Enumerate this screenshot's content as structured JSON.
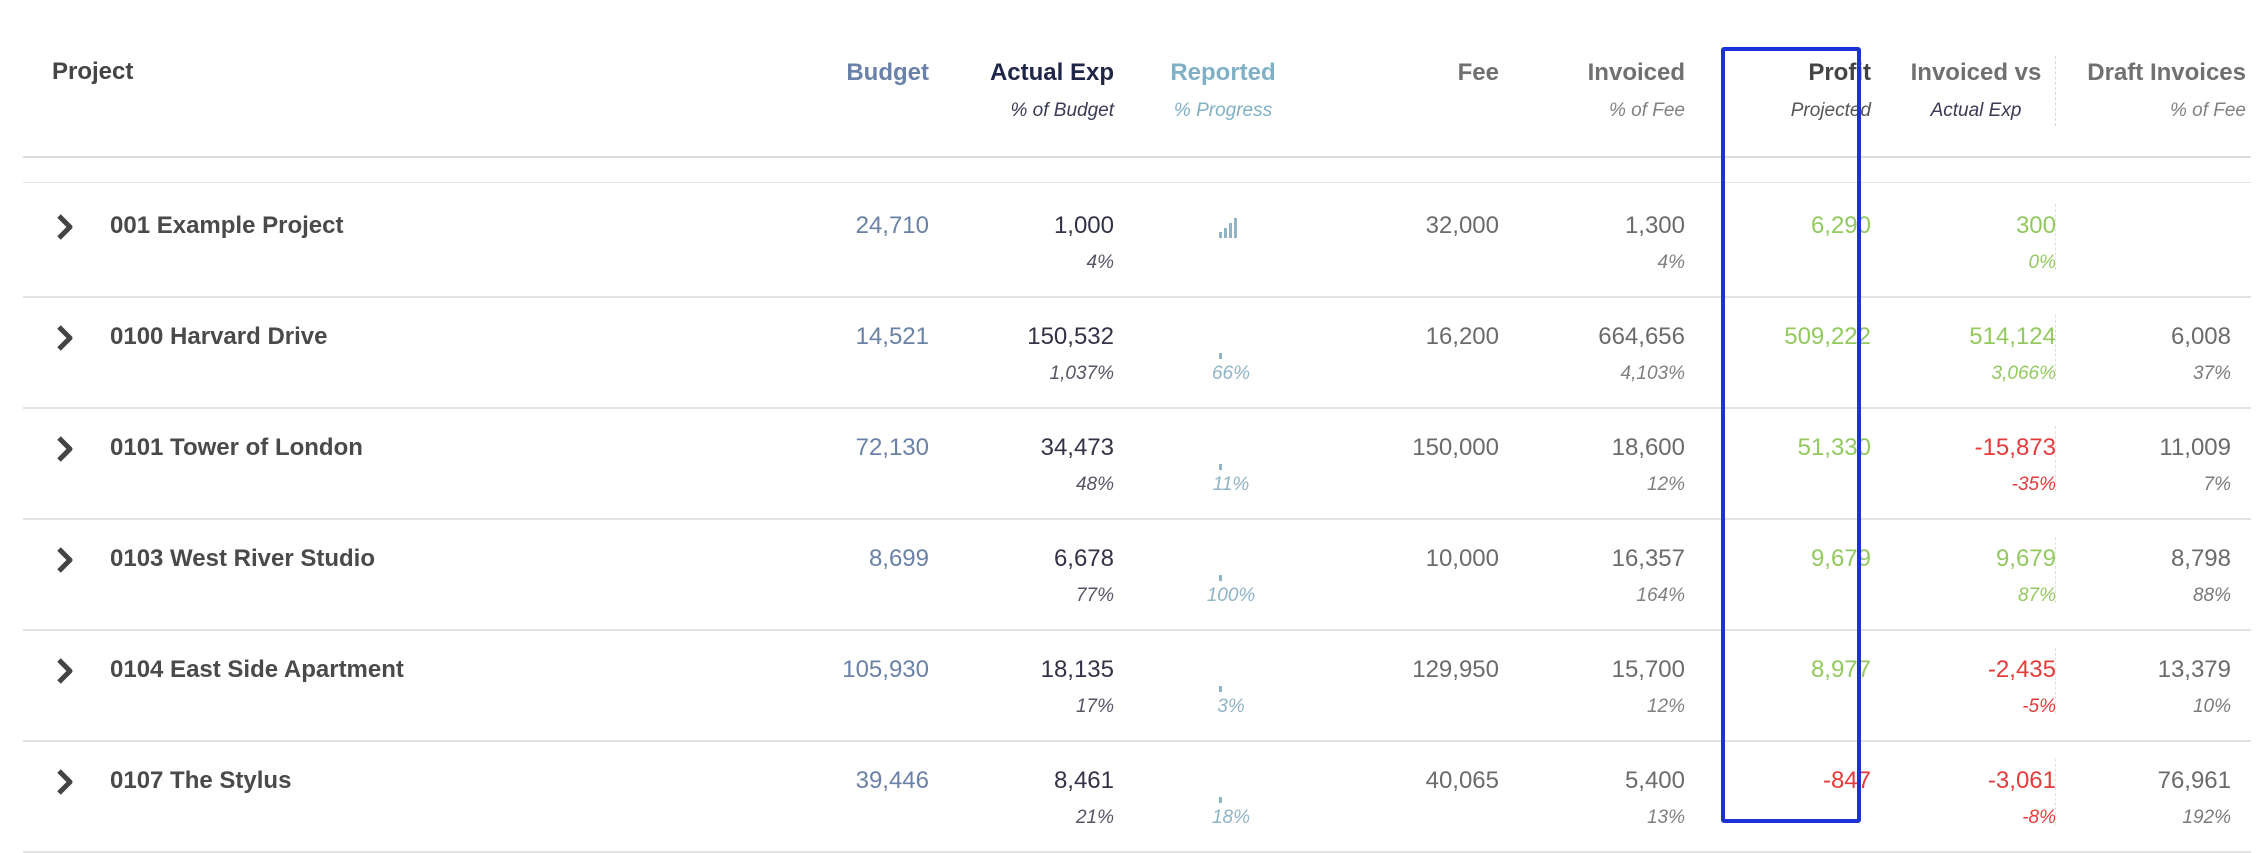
{
  "header": {
    "project": "Project",
    "columns": [
      {
        "key": "budget",
        "title": "Budget",
        "subtitle": "",
        "title_color": "#6a81a8"
      },
      {
        "key": "actual",
        "title": "Actual Exp",
        "subtitle": "% of Budget",
        "title_color": "#1f2547"
      },
      {
        "key": "reported",
        "title": "Reported",
        "subtitle": "% Progress",
        "title_color": "#7fb0c6"
      },
      {
        "key": "fee",
        "title": "Fee",
        "subtitle": "",
        "title_color": "#707070"
      },
      {
        "key": "invoiced",
        "title": "Invoiced",
        "subtitle": "% of Fee",
        "title_color": "#707070"
      },
      {
        "key": "profit",
        "title": "Profit",
        "subtitle": "Projected",
        "title_color": "#444444"
      },
      {
        "key": "invvsact",
        "title": "Invoiced vs",
        "subtitle": "Actual Exp",
        "title_color": "#707070"
      },
      {
        "key": "draft",
        "title": "Draft Invoices",
        "subtitle": "% of Fee",
        "title_color": "#707070"
      }
    ]
  },
  "colors": {
    "positive": "#93c95f",
    "negative": "#e63b3b",
    "highlight_border": "#1a32d8",
    "reported": "#8fb4c6"
  },
  "icons": {
    "expand": "chevron-right-icon",
    "progress": "bar-chart-icon"
  },
  "rows": [
    {
      "name": "001 Example Project",
      "budget": "24,710",
      "actual": "1,000",
      "actual_pct": "4%",
      "reported_pct": "",
      "reported_progress": 0.04,
      "reported_icon": "full",
      "fee": "32,000",
      "invoiced": "1,300",
      "invoiced_pct": "4%",
      "profit": "6,290",
      "profit_sign": "positive",
      "invvsact": "300",
      "invvsact_pct": "0%",
      "invvsact_sign": "positive",
      "draft": "",
      "draft_pct": ""
    },
    {
      "name": "0100 Harvard Drive",
      "budget": "14,521",
      "actual": "150,532",
      "actual_pct": "1,037%",
      "reported_pct": "66%",
      "reported_progress": 0.66,
      "reported_icon": "tick",
      "fee": "16,200",
      "invoiced": "664,656",
      "invoiced_pct": "4,103%",
      "profit": "509,222",
      "profit_sign": "positive",
      "invvsact": "514,124",
      "invvsact_pct": "3,066%",
      "invvsact_sign": "positive",
      "draft": "6,008",
      "draft_pct": "37%"
    },
    {
      "name": "0101 Tower of London",
      "budget": "72,130",
      "actual": "34,473",
      "actual_pct": "48%",
      "reported_pct": "11%",
      "reported_progress": 0.11,
      "reported_icon": "tick",
      "fee": "150,000",
      "invoiced": "18,600",
      "invoiced_pct": "12%",
      "profit": "51,330",
      "profit_sign": "positive",
      "invvsact": "-15,873",
      "invvsact_pct": "-35%",
      "invvsact_sign": "negative",
      "draft": "11,009",
      "draft_pct": "7%"
    },
    {
      "name": "0103 West River Studio",
      "budget": "8,699",
      "actual": "6,678",
      "actual_pct": "77%",
      "reported_pct": "100%",
      "reported_progress": 1.0,
      "reported_icon": "tick",
      "fee": "10,000",
      "invoiced": "16,357",
      "invoiced_pct": "164%",
      "profit": "9,679",
      "profit_sign": "positive",
      "invvsact": "9,679",
      "invvsact_pct": "87%",
      "invvsact_sign": "positive",
      "draft": "8,798",
      "draft_pct": "88%"
    },
    {
      "name": "0104 East Side Apartment",
      "budget": "105,930",
      "actual": "18,135",
      "actual_pct": "17%",
      "reported_pct": "3%",
      "reported_progress": 0.03,
      "reported_icon": "tick",
      "fee": "129,950",
      "invoiced": "15,700",
      "invoiced_pct": "12%",
      "profit": "8,977",
      "profit_sign": "positive",
      "invvsact": "-2,435",
      "invvsact_pct": "-5%",
      "invvsact_sign": "negative",
      "draft": "13,379",
      "draft_pct": "10%"
    },
    {
      "name": "0107 The Stylus",
      "budget": "39,446",
      "actual": "8,461",
      "actual_pct": "21%",
      "reported_pct": "18%",
      "reported_progress": 0.18,
      "reported_icon": "tick",
      "fee": "40,065",
      "invoiced": "5,400",
      "invoiced_pct": "13%",
      "profit": "-847",
      "profit_sign": "negative",
      "invvsact": "-3,061",
      "invvsact_pct": "-8%",
      "invvsact_sign": "negative",
      "draft": "76,961",
      "draft_pct": "192%"
    }
  ]
}
